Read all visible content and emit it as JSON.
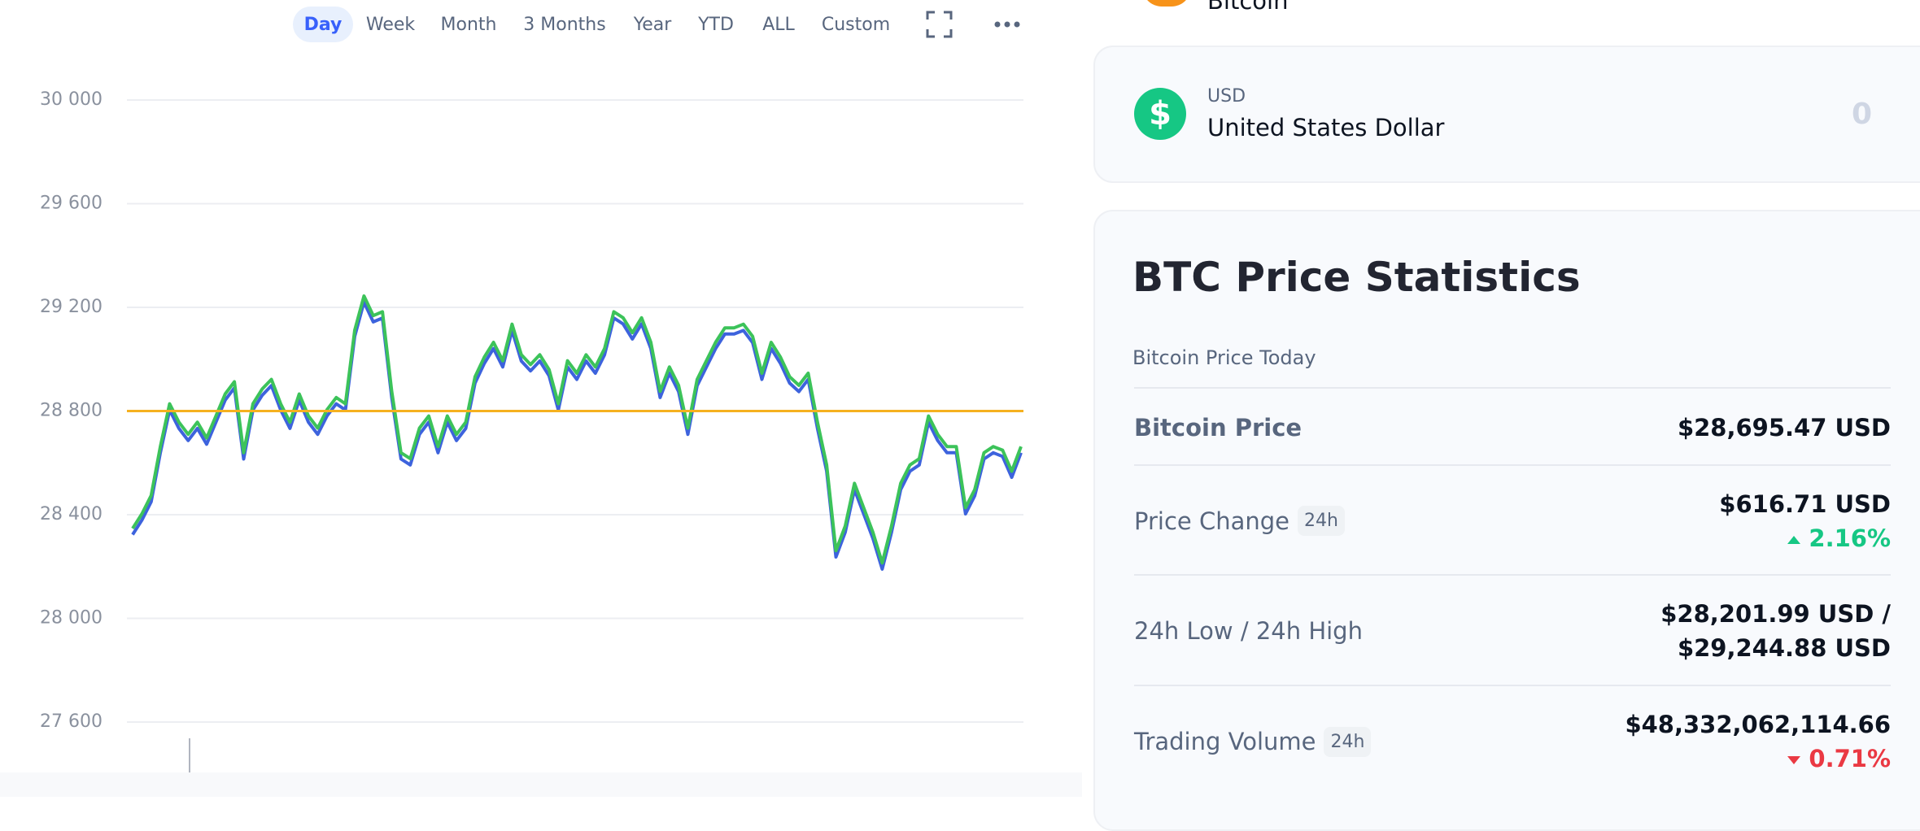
{
  "chart_data": {
    "type": "line",
    "range_tabs": [
      "Day",
      "Week",
      "Month",
      "3 Months",
      "Year",
      "YTD",
      "ALL",
      "Custom"
    ],
    "active_tab": 0,
    "ylim": [
      27600,
      30000
    ],
    "yticks": [
      {
        "value": 30000,
        "label": "30 000"
      },
      {
        "value": 29600,
        "label": "29 600"
      },
      {
        "value": 29200,
        "label": "29 200"
      },
      {
        "value": 28800,
        "label": "28 800"
      },
      {
        "value": 28400,
        "label": "28 400"
      },
      {
        "value": 28000,
        "label": "28 000"
      },
      {
        "value": 27600,
        "label": "27 600"
      }
    ],
    "grid": true,
    "reference_line": {
      "value": 28800,
      "color": "#f5b120"
    },
    "series": [
      {
        "color": "#3d63dd",
        "values": [
          28323,
          28379,
          28450,
          28639,
          28804,
          28733,
          28686,
          28733,
          28672,
          28757,
          28842,
          28889,
          28615,
          28804,
          28861,
          28898,
          28804,
          28733,
          28842,
          28757,
          28710,
          28781,
          28828,
          28804,
          29088,
          29220,
          29144,
          29159,
          28852,
          28615,
          28592,
          28710,
          28757,
          28639,
          28757,
          28686,
          28733,
          28908,
          28984,
          29041,
          28970,
          29111,
          28993,
          28955,
          28993,
          28936,
          28804,
          28970,
          28922,
          28993,
          28946,
          29017,
          29159,
          29136,
          29078,
          29136,
          29041,
          28852,
          28946,
          28875,
          28710,
          28898,
          28970,
          29041,
          29097,
          29097,
          29111,
          29064,
          28922,
          29041,
          28984,
          28908,
          28875,
          28922,
          28733,
          28568,
          28237,
          28332,
          28497,
          28403,
          28308,
          28190,
          28332,
          28497,
          28568,
          28592,
          28757,
          28686,
          28639,
          28639,
          28403,
          28473,
          28615,
          28639,
          28625,
          28544,
          28639
        ]
      },
      {
        "color": "#3cc35a",
        "values": [
          28347,
          28403,
          28474,
          28663,
          28828,
          28757,
          28710,
          28757,
          28696,
          28781,
          28866,
          28913,
          28639,
          28828,
          28885,
          28922,
          28828,
          28757,
          28866,
          28781,
          28734,
          28805,
          28852,
          28828,
          29112,
          29244,
          29168,
          29183,
          28876,
          28639,
          28616,
          28734,
          28781,
          28663,
          28781,
          28710,
          28757,
          28932,
          29008,
          29065,
          28994,
          29135,
          29017,
          28979,
          29017,
          28960,
          28828,
          28994,
          28946,
          29017,
          28970,
          29041,
          29183,
          29160,
          29102,
          29160,
          29065,
          28876,
          28970,
          28899,
          28734,
          28922,
          28994,
          29065,
          29121,
          29121,
          29135,
          29088,
          28946,
          29065,
          29008,
          28932,
          28899,
          28946,
          28757,
          28592,
          28261,
          28356,
          28521,
          28427,
          28332,
          28214,
          28356,
          28521,
          28592,
          28616,
          28781,
          28710,
          28663,
          28663,
          28427,
          28497,
          28639,
          28663,
          28649,
          28568,
          28663
        ]
      }
    ]
  },
  "top_asset": "Bitcoin",
  "currency": {
    "code": "USD",
    "name": "United States Dollar",
    "symbol": "$",
    "amount": "0"
  },
  "stats": {
    "title": "BTC Price Statistics",
    "section": "Bitcoin Price Today",
    "rows": [
      {
        "label": "Bitcoin Price",
        "value": "$28,695.47 USD"
      },
      {
        "label": "Price Change",
        "badge": "24h",
        "value": "$616.71 USD",
        "change": "2.16%",
        "direction": "up"
      },
      {
        "label": "24h Low / 24h High",
        "value": "$28,201.99 USD /",
        "value2": "$29,244.88 USD"
      },
      {
        "label": "Trading Volume",
        "badge": "24h",
        "value": "$48,332,062,114.66",
        "change": "0.71%",
        "direction": "down"
      }
    ]
  }
}
